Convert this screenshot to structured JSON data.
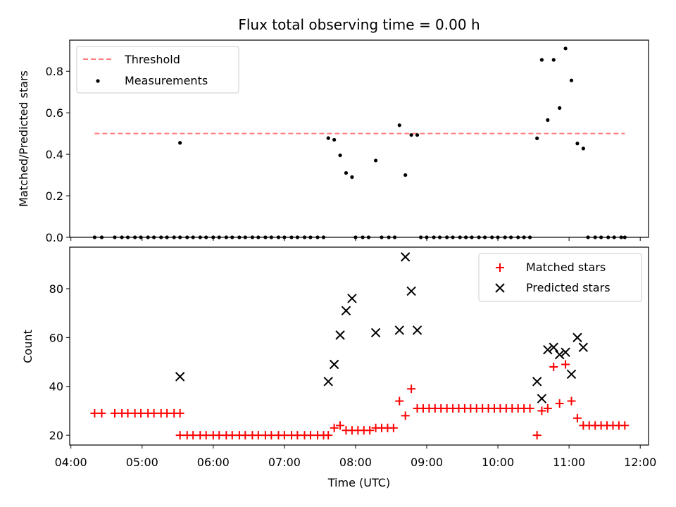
{
  "chart_data": [
    {
      "type": "scatter",
      "title": "Flux total observing time = 0.00 h",
      "xlabel": "",
      "ylabel": "Matched/Predicted stars",
      "ylim": [
        0,
        0.95
      ],
      "yticks": [
        "0.0",
        "0.2",
        "0.4",
        "0.6",
        "0.8"
      ],
      "legend_position": "top-left",
      "threshold": {
        "name": "Threshold",
        "value": 0.5,
        "x_start": "04:20",
        "x_end": "11:47",
        "color": "#ff7f7f"
      },
      "series": [
        {
          "name": "Measurements",
          "color": "#000000",
          "points": [
            [
              "04:20",
              0
            ],
            [
              "04:26",
              0
            ],
            [
              "04:37",
              0
            ],
            [
              "04:43",
              0
            ],
            [
              "04:48",
              0
            ],
            [
              "04:54",
              0
            ],
            [
              "04:59",
              0
            ],
            [
              "05:05",
              0
            ],
            [
              "05:10",
              0
            ],
            [
              "05:16",
              0
            ],
            [
              "05:21",
              0
            ],
            [
              "05:27",
              0
            ],
            [
              "05:32",
              0
            ],
            [
              "05:32",
              0.455
            ],
            [
              "05:38",
              0
            ],
            [
              "05:43",
              0
            ],
            [
              "05:49",
              0
            ],
            [
              "05:54",
              0
            ],
            [
              "06:00",
              0
            ],
            [
              "06:05",
              0
            ],
            [
              "06:11",
              0
            ],
            [
              "06:16",
              0
            ],
            [
              "06:22",
              0
            ],
            [
              "06:27",
              0
            ],
            [
              "06:33",
              0
            ],
            [
              "06:38",
              0
            ],
            [
              "06:44",
              0
            ],
            [
              "06:49",
              0
            ],
            [
              "06:55",
              0
            ],
            [
              "07:00",
              0
            ],
            [
              "07:06",
              0
            ],
            [
              "07:11",
              0
            ],
            [
              "07:17",
              0
            ],
            [
              "07:22",
              0
            ],
            [
              "07:28",
              0
            ],
            [
              "07:33",
              0
            ],
            [
              "07:37",
              0.478
            ],
            [
              "07:42",
              0.47
            ],
            [
              "07:47",
              0.395
            ],
            [
              "07:52",
              0.31
            ],
            [
              "07:57",
              0.29
            ],
            [
              "08:00",
              0
            ],
            [
              "08:06",
              0
            ],
            [
              "08:11",
              0
            ],
            [
              "08:17",
              0.37
            ],
            [
              "08:22",
              0
            ],
            [
              "08:28",
              0
            ],
            [
              "08:33",
              0
            ],
            [
              "08:37",
              0.54
            ],
            [
              "08:42",
              0.3
            ],
            [
              "08:47",
              0.493
            ],
            [
              "08:52",
              0.493
            ],
            [
              "08:55",
              0
            ],
            [
              "09:00",
              0
            ],
            [
              "09:06",
              0
            ],
            [
              "09:11",
              0
            ],
            [
              "09:17",
              0
            ],
            [
              "09:22",
              0
            ],
            [
              "09:28",
              0
            ],
            [
              "09:33",
              0
            ],
            [
              "09:38",
              0
            ],
            [
              "09:44",
              0
            ],
            [
              "09:49",
              0
            ],
            [
              "09:55",
              0
            ],
            [
              "10:00",
              0
            ],
            [
              "10:06",
              0
            ],
            [
              "10:11",
              0
            ],
            [
              "10:17",
              0
            ],
            [
              "10:22",
              0
            ],
            [
              "10:27",
              0
            ],
            [
              "10:33",
              0.477
            ],
            [
              "10:37",
              0.855
            ],
            [
              "10:42",
              0.565
            ],
            [
              "10:47",
              0.855
            ],
            [
              "10:52",
              0.623
            ],
            [
              "10:57",
              0.91
            ],
            [
              "11:02",
              0.756
            ],
            [
              "11:07",
              0.452
            ],
            [
              "11:12",
              0.428
            ],
            [
              "11:16",
              0
            ],
            [
              "11:22",
              0
            ],
            [
              "11:27",
              0
            ],
            [
              "11:33",
              0
            ],
            [
              "11:38",
              0
            ],
            [
              "11:44",
              0
            ],
            [
              "11:47",
              0
            ]
          ]
        }
      ]
    },
    {
      "type": "scatter",
      "title": "",
      "xlabel": "Time (UTC)",
      "ylabel": "Count",
      "ylim": [
        16,
        97
      ],
      "yticks": [
        "20",
        "40",
        "60",
        "80"
      ],
      "xlim": [
        "03:59",
        "12:07"
      ],
      "xticks": [
        "04:00",
        "05:00",
        "06:00",
        "07:00",
        "08:00",
        "09:00",
        "10:00",
        "11:00",
        "12:00"
      ],
      "legend_position": "top-right",
      "series": [
        {
          "name": "Matched stars",
          "marker": "plus",
          "color": "#ff0000",
          "points": [
            [
              "04:20",
              29
            ],
            [
              "04:26",
              29
            ],
            [
              "04:37",
              29
            ],
            [
              "04:43",
              29
            ],
            [
              "04:48",
              29
            ],
            [
              "04:54",
              29
            ],
            [
              "04:59",
              29
            ],
            [
              "05:05",
              29
            ],
            [
              "05:10",
              29
            ],
            [
              "05:16",
              29
            ],
            [
              "05:21",
              29
            ],
            [
              "05:27",
              29
            ],
            [
              "05:32",
              29
            ],
            [
              "05:32",
              20
            ],
            [
              "05:38",
              20
            ],
            [
              "05:43",
              20
            ],
            [
              "05:49",
              20
            ],
            [
              "05:54",
              20
            ],
            [
              "06:00",
              20
            ],
            [
              "06:05",
              20
            ],
            [
              "06:11",
              20
            ],
            [
              "06:16",
              20
            ],
            [
              "06:22",
              20
            ],
            [
              "06:27",
              20
            ],
            [
              "06:33",
              20
            ],
            [
              "06:38",
              20
            ],
            [
              "06:44",
              20
            ],
            [
              "06:49",
              20
            ],
            [
              "06:55",
              20
            ],
            [
              "07:00",
              20
            ],
            [
              "07:06",
              20
            ],
            [
              "07:11",
              20
            ],
            [
              "07:17",
              20
            ],
            [
              "07:22",
              20
            ],
            [
              "07:28",
              20
            ],
            [
              "07:33",
              20
            ],
            [
              "07:37",
              20
            ],
            [
              "07:42",
              23
            ],
            [
              "07:47",
              24
            ],
            [
              "07:52",
              22
            ],
            [
              "07:57",
              22
            ],
            [
              "08:02",
              22
            ],
            [
              "08:07",
              22
            ],
            [
              "08:12",
              22
            ],
            [
              "08:17",
              23
            ],
            [
              "08:22",
              23
            ],
            [
              "08:27",
              23
            ],
            [
              "08:32",
              23
            ],
            [
              "08:37",
              34
            ],
            [
              "08:42",
              28
            ],
            [
              "08:47",
              39
            ],
            [
              "08:52",
              31
            ],
            [
              "08:57",
              31
            ],
            [
              "09:02",
              31
            ],
            [
              "09:07",
              31
            ],
            [
              "09:12",
              31
            ],
            [
              "09:17",
              31
            ],
            [
              "09:22",
              31
            ],
            [
              "09:27",
              31
            ],
            [
              "09:32",
              31
            ],
            [
              "09:37",
              31
            ],
            [
              "09:42",
              31
            ],
            [
              "09:47",
              31
            ],
            [
              "09:52",
              31
            ],
            [
              "09:57",
              31
            ],
            [
              "10:02",
              31
            ],
            [
              "10:07",
              31
            ],
            [
              "10:12",
              31
            ],
            [
              "10:17",
              31
            ],
            [
              "10:22",
              31
            ],
            [
              "10:27",
              31
            ],
            [
              "10:33",
              20
            ],
            [
              "10:37",
              30
            ],
            [
              "10:42",
              31
            ],
            [
              "10:47",
              48
            ],
            [
              "10:52",
              33
            ],
            [
              "10:57",
              49
            ],
            [
              "11:02",
              34
            ],
            [
              "11:07",
              27
            ],
            [
              "11:12",
              24
            ],
            [
              "11:17",
              24
            ],
            [
              "11:22",
              24
            ],
            [
              "11:27",
              24
            ],
            [
              "11:32",
              24
            ],
            [
              "11:37",
              24
            ],
            [
              "11:42",
              24
            ],
            [
              "11:47",
              24
            ]
          ]
        },
        {
          "name": "Predicted stars",
          "marker": "x",
          "color": "#000000",
          "points": [
            [
              "05:32",
              44
            ],
            [
              "07:37",
              42
            ],
            [
              "07:42",
              49
            ],
            [
              "07:47",
              61
            ],
            [
              "07:52",
              71
            ],
            [
              "07:57",
              76
            ],
            [
              "08:17",
              62
            ],
            [
              "08:37",
              63
            ],
            [
              "08:42",
              93
            ],
            [
              "08:47",
              79
            ],
            [
              "08:52",
              63
            ],
            [
              "10:33",
              42
            ],
            [
              "10:37",
              35
            ],
            [
              "10:42",
              55
            ],
            [
              "10:47",
              56
            ],
            [
              "10:52",
              53
            ],
            [
              "10:57",
              54
            ],
            [
              "11:02",
              45
            ],
            [
              "11:07",
              60
            ],
            [
              "11:12",
              56
            ]
          ]
        }
      ]
    }
  ]
}
